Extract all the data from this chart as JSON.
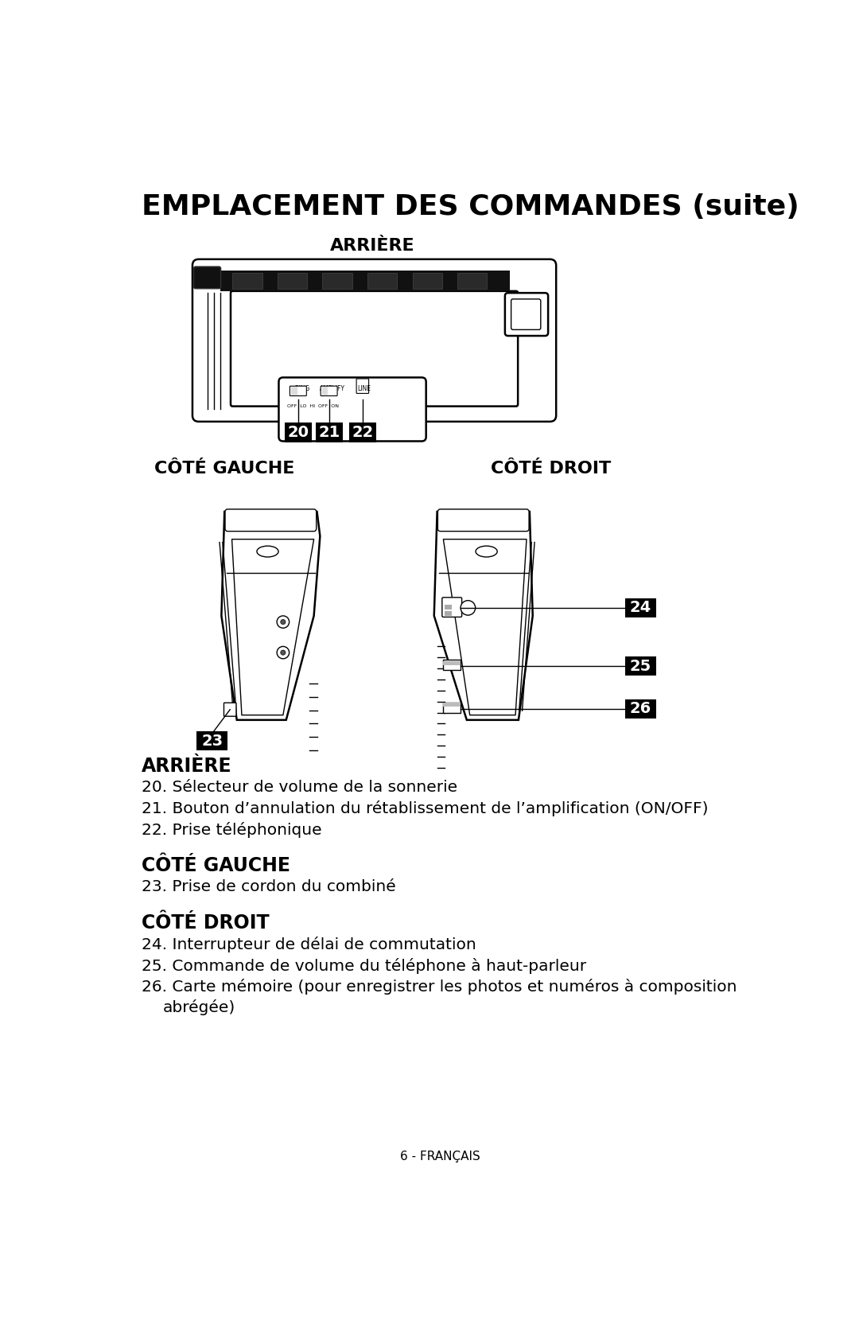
{
  "title": "EMPLACEMENT DES COMMANDES (suite)",
  "arriere_heading": "ARRIÈRE",
  "gauche_heading": "CÔTÉ GAUCHE",
  "droit_heading": "CÔTÉ DROIT",
  "arriere_items": [
    "20. Sélecteur de volume de la sonnerie",
    "21. Bouton d’annulation du rétablissement de l’amplification (ON/OFF)",
    "22. Prise téléphonique"
  ],
  "gauche_items": [
    "23. Prise de cordon du combiné"
  ],
  "droit_items": [
    "24. Interrupteur de délai de commutation",
    "25. Commande de volume du téléphone à haut-parleur",
    "26. Carte mémoire (pour enregistrer les photos et numéros à composition",
    "        abrégée)"
  ],
  "footer": "6 - FRANÇAIS",
  "bg_color": "#ffffff",
  "text_color": "#000000"
}
